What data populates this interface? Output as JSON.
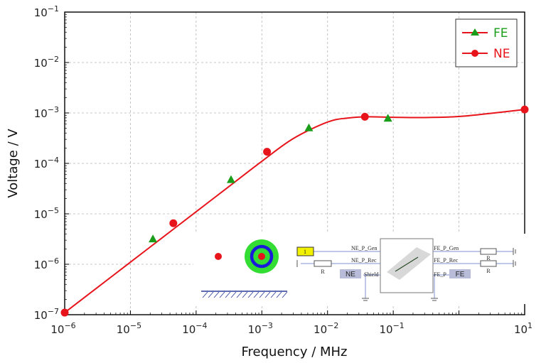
{
  "chart_data": {
    "type": "line",
    "xlabel": "Frequency / MHz",
    "ylabel": "Voltage / V",
    "x_scale": "log",
    "y_scale": "log",
    "xlim": [
      1e-06,
      10
    ],
    "ylim": [
      1e-07,
      0.1
    ],
    "grid": true,
    "legend_position": "top-right",
    "x_ticks": [
      {
        "base": "10",
        "exp": "−6",
        "value": 1e-06
      },
      {
        "base": "10",
        "exp": "−5",
        "value": 1e-05
      },
      {
        "base": "10",
        "exp": "−4",
        "value": 0.0001
      },
      {
        "base": "10",
        "exp": "−3",
        "value": 0.001
      },
      {
        "base": "10",
        "exp": "−2",
        "value": 0.01
      },
      {
        "base": "10",
        "exp": "−1",
        "value": 0.1
      },
      {
        "base": "10",
        "exp": "1",
        "value": 10
      }
    ],
    "y_ticks": [
      {
        "base": "10",
        "exp": "−7",
        "value": 1e-07
      },
      {
        "base": "10",
        "exp": "−6",
        "value": 1e-06
      },
      {
        "base": "10",
        "exp": "−5",
        "value": 1e-05
      },
      {
        "base": "10",
        "exp": "−4",
        "value": 0.0001
      },
      {
        "base": "10",
        "exp": "−3",
        "value": 0.001
      },
      {
        "base": "10",
        "exp": "−2",
        "value": 0.01
      },
      {
        "base": "10",
        "exp": "−1",
        "value": 0.1
      }
    ],
    "curve": {
      "color": "#e8141c",
      "x": [
        1e-06,
        3e-06,
        1e-05,
        3e-05,
        0.0001,
        0.0003,
        0.001,
        0.003,
        0.01,
        0.02,
        0.04,
        0.1,
        0.3,
        1,
        3,
        10
      ],
      "y": [
        1.1e-07,
        3.3e-07,
        1.1e-06,
        3.3e-06,
        1.1e-05,
        3.3e-05,
        0.00011,
        0.00031,
        0.00066,
        0.00079,
        0.00084,
        0.00082,
        0.00081,
        0.00085,
        0.00098,
        0.00117
      ]
    },
    "series": [
      {
        "name": "FE",
        "marker": "triangle",
        "color": "#1a9e1a",
        "x": [
          2.2e-05,
          0.00034,
          0.0052,
          0.083
        ],
        "y": [
          3.2e-06,
          4.8e-05,
          0.00051,
          0.00079
        ]
      },
      {
        "name": "NE",
        "marker": "circle",
        "color": "#e8141c",
        "x": [
          1e-06,
          4.5e-05,
          0.0012,
          0.037,
          10
        ],
        "y": [
          1.1e-07,
          6.5e-06,
          0.00017,
          0.00084,
          0.00117
        ]
      }
    ]
  },
  "inset": {
    "nodes": {
      "input": "1",
      "ne_gen": "NE_P_Gen",
      "ne_rec": "NE_P_Rec",
      "shield": "Shield",
      "ne_box": "NE",
      "fe_gen": "FE_P_Gen",
      "fe_rec": "FE_P_Rec",
      "fe_p": "FE_P",
      "fe_box": "FE",
      "r_left": "R",
      "r_right_top": "R",
      "r_right_bottom": "R"
    }
  }
}
